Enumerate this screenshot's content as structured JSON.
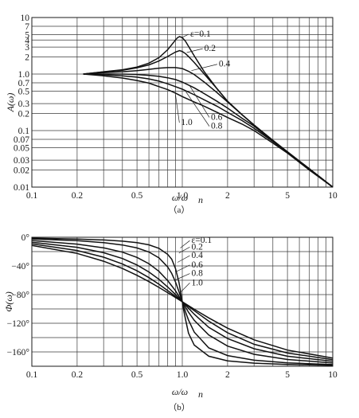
{
  "chart_data": [
    {
      "type": "line",
      "caption": "（a）",
      "xlabel": "ω/ω",
      "xlabel_sub": "n",
      "ylabel": "A(ω)",
      "xscale": "log",
      "yscale": "log",
      "xlim": [
        0.1,
        10
      ],
      "ylim": [
        0.01,
        10
      ],
      "grid": true,
      "x_ticks": [
        {
          "v": 0.1,
          "label": "0.1"
        },
        {
          "v": 0.2,
          "label": "0.2"
        },
        {
          "v": 0.5,
          "label": "0.5"
        },
        {
          "v": 1,
          "label": "1.0"
        },
        {
          "v": 2,
          "label": "2"
        },
        {
          "v": 5,
          "label": "5"
        },
        {
          "v": 10,
          "label": "10"
        }
      ],
      "x_grid": [
        0.1,
        0.2,
        0.3,
        0.4,
        0.5,
        0.6,
        0.7,
        0.8,
        0.9,
        1,
        2,
        3,
        4,
        5,
        6,
        7,
        8,
        9,
        10
      ],
      "y_ticks": [
        {
          "v": 0.01,
          "label": "0.01"
        },
        {
          "v": 0.02,
          "label": "0.02"
        },
        {
          "v": 0.03,
          "label": "0.03"
        },
        {
          "v": 0.05,
          "label": "0.05"
        },
        {
          "v": 0.07,
          "label": "0.07"
        },
        {
          "v": 0.1,
          "label": "0.1"
        },
        {
          "v": 0.2,
          "label": "0.2"
        },
        {
          "v": 0.3,
          "label": "0.3"
        },
        {
          "v": 0.5,
          "label": "0.5"
        },
        {
          "v": 0.7,
          "label": "0.7"
        },
        {
          "v": 1,
          "label": "1.0"
        },
        {
          "v": 2,
          "label": "2"
        },
        {
          "v": 3,
          "label": "3"
        },
        {
          "v": 4,
          "label": "4"
        },
        {
          "v": 5,
          "label": "5"
        },
        {
          "v": 7,
          "label": "7"
        },
        {
          "v": 10,
          "label": "10"
        }
      ],
      "y_grid": [
        0.01,
        0.02,
        0.03,
        0.05,
        0.07,
        0.1,
        0.2,
        0.3,
        0.5,
        0.7,
        1,
        2,
        3,
        4,
        5,
        7,
        10
      ],
      "series": [
        {
          "name": "ε=0.1",
          "x": [
            0.22,
            0.3,
            0.4,
            0.5,
            0.6,
            0.7,
            0.8,
            0.85,
            0.9,
            0.93,
            0.96,
            1.0,
            1.05,
            1.1,
            1.2,
            1.4,
            1.7,
            2.0,
            2.5,
            3.0,
            4.0,
            5.0,
            7.0,
            10.0
          ],
          "y": [
            1.0,
            1.1,
            1.19,
            1.33,
            1.56,
            1.95,
            2.7,
            3.3,
            4.0,
            4.4,
            4.6,
            4.4,
            3.8,
            3.1,
            2.1,
            1.1,
            0.55,
            0.33,
            0.19,
            0.125,
            0.067,
            0.042,
            0.021,
            0.01
          ]
        },
        {
          "name": "0.2",
          "x": [
            0.22,
            0.3,
            0.4,
            0.5,
            0.6,
            0.7,
            0.8,
            0.9,
            0.96,
            1.0,
            1.05,
            1.1,
            1.2,
            1.4,
            1.7,
            2.0,
            2.5,
            3.0,
            4.0,
            5.0,
            7.0,
            10.0
          ],
          "y": [
            1.0,
            1.09,
            1.17,
            1.29,
            1.45,
            1.7,
            2.05,
            2.45,
            2.6,
            2.5,
            2.3,
            2.05,
            1.6,
            1.0,
            0.55,
            0.33,
            0.19,
            0.125,
            0.067,
            0.042,
            0.021,
            0.01
          ]
        },
        {
          "name": "0.4",
          "x": [
            0.22,
            0.3,
            0.4,
            0.5,
            0.6,
            0.7,
            0.8,
            0.9,
            1.0,
            1.1,
            1.2,
            1.4,
            1.7,
            2.0,
            2.5,
            3.0,
            4.0,
            5.0,
            7.0,
            10.0
          ],
          "y": [
            1.0,
            1.06,
            1.1,
            1.15,
            1.21,
            1.27,
            1.3,
            1.3,
            1.25,
            1.12,
            0.98,
            0.72,
            0.47,
            0.32,
            0.19,
            0.125,
            0.067,
            0.042,
            0.021,
            0.01
          ]
        },
        {
          "name": "0.6",
          "x": [
            0.22,
            0.3,
            0.4,
            0.5,
            0.6,
            0.7,
            0.8,
            0.9,
            1.0,
            1.1,
            1.2,
            1.4,
            1.7,
            2.0,
            2.5,
            3.0,
            4.0,
            5.0,
            7.0,
            10.0
          ],
          "y": [
            1.0,
            1.0,
            1.0,
            0.98,
            0.95,
            0.91,
            0.86,
            0.8,
            0.72,
            0.64,
            0.57,
            0.45,
            0.33,
            0.25,
            0.165,
            0.12,
            0.065,
            0.041,
            0.021,
            0.01
          ]
        },
        {
          "name": "0.8",
          "x": [
            0.22,
            0.3,
            0.4,
            0.5,
            0.6,
            0.7,
            0.8,
            0.9,
            1.0,
            1.2,
            1.4,
            1.7,
            2.0,
            2.5,
            3.0,
            4.0,
            5.0,
            7.0,
            10.0
          ],
          "y": [
            1.0,
            0.97,
            0.93,
            0.88,
            0.82,
            0.75,
            0.67,
            0.6,
            0.54,
            0.43,
            0.35,
            0.27,
            0.21,
            0.15,
            0.11,
            0.064,
            0.041,
            0.021,
            0.01
          ]
        },
        {
          "name": "1.0",
          "x": [
            0.22,
            0.3,
            0.4,
            0.5,
            0.6,
            0.7,
            0.8,
            0.9,
            1.0,
            1.2,
            1.4,
            1.7,
            2.0,
            2.5,
            3.0,
            4.0,
            5.0,
            7.0,
            10.0
          ],
          "y": [
            1.0,
            0.93,
            0.85,
            0.77,
            0.69,
            0.6,
            0.53,
            0.46,
            0.4,
            0.32,
            0.27,
            0.21,
            0.17,
            0.13,
            0.1,
            0.06,
            0.04,
            0.02,
            0.01
          ]
        }
      ],
      "labels": [
        {
          "text": "ε=0.1",
          "x": 1.13,
          "y": 4.6,
          "lx": 1.0,
          "ly": 4.45
        },
        {
          "text": "0.2",
          "x": 1.4,
          "y": 2.55,
          "lx": 1.07,
          "ly": 2.4
        },
        {
          "text": "0.4",
          "x": 1.75,
          "y": 1.35,
          "lx": 1.15,
          "ly": 1.15
        },
        {
          "text": "0.6",
          "x": 1.55,
          "y": 0.155,
          "lx": 1.12,
          "ly": 0.62
        },
        {
          "text": "0.8",
          "x": 1.55,
          "y": 0.108,
          "lx": 1.05,
          "ly": 0.5
        },
        {
          "text": "1.0",
          "x": 0.98,
          "y": 0.125,
          "lx": 0.9,
          "ly": 0.44
        }
      ]
    },
    {
      "type": "line",
      "caption": "（b）",
      "xlabel": "ω/ω",
      "xlabel_sub": "n",
      "ylabel": "Φ(ω)",
      "xscale": "log",
      "xlim": [
        0.1,
        10
      ],
      "ylim": [
        -180,
        0
      ],
      "grid": true,
      "x_ticks": [
        {
          "v": 0.1,
          "label": "0.1"
        },
        {
          "v": 0.2,
          "label": "0.2"
        },
        {
          "v": 0.5,
          "label": "0.5"
        },
        {
          "v": 1,
          "label": "1.0"
        },
        {
          "v": 2,
          "label": "2"
        },
        {
          "v": 5,
          "label": "5"
        },
        {
          "v": 10,
          "label": "10"
        }
      ],
      "x_grid": [
        0.1,
        0.2,
        0.3,
        0.4,
        0.5,
        0.6,
        0.7,
        0.8,
        0.9,
        1,
        2,
        3,
        4,
        5,
        6,
        7,
        8,
        9,
        10
      ],
      "y_ticks": [
        {
          "v": 0,
          "label": "0°"
        },
        {
          "v": -40,
          "label": "−40°"
        },
        {
          "v": -80,
          "label": "−80°"
        },
        {
          "v": -120,
          "label": "−120°"
        },
        {
          "v": -160,
          "label": "−160°"
        }
      ],
      "y_grid": [
        0,
        -20,
        -40,
        -60,
        -80,
        -100,
        -120,
        -140,
        -160,
        -180
      ],
      "series": [
        {
          "name": "ε=0.1",
          "x": [
            0.1,
            0.2,
            0.3,
            0.4,
            0.5,
            0.6,
            0.7,
            0.8,
            0.85,
            0.9,
            0.95,
            0.98,
            1.0,
            1.02,
            1.05,
            1.1,
            1.2,
            1.5,
            2.0,
            3.0,
            5.0,
            10.0
          ],
          "y": [
            -1.2,
            -2.4,
            -3.8,
            -5.4,
            -7.6,
            -10.6,
            -15.4,
            -23.9,
            -30.6,
            -43.4,
            -62.8,
            -79.0,
            -90,
            -101,
            -114.2,
            -133.8,
            -150.4,
            -166.0,
            -172.4,
            -175.7,
            -177.6,
            -178.8
          ]
        },
        {
          "name": "0.2",
          "x": [
            0.1,
            0.2,
            0.3,
            0.4,
            0.5,
            0.6,
            0.7,
            0.8,
            0.85,
            0.9,
            0.95,
            1.0,
            1.05,
            1.1,
            1.2,
            1.5,
            2.0,
            3.0,
            5.0,
            10.0
          ],
          "y": [
            -2.3,
            -4.8,
            -7.5,
            -10.8,
            -14.9,
            -20.6,
            -28.8,
            -41.6,
            -50.4,
            -62.2,
            -75.9,
            -90,
            -104.0,
            -115.4,
            -132.3,
            -154.4,
            -165.1,
            -171.5,
            -175.2,
            -177.7
          ]
        },
        {
          "name": "0.4",
          "x": [
            0.1,
            0.2,
            0.3,
            0.4,
            0.5,
            0.6,
            0.7,
            0.8,
            0.9,
            1.0,
            1.1,
            1.2,
            1.5,
            2.0,
            3.0,
            5.0,
            10.0
          ],
          "y": [
            -4.6,
            -9.5,
            -14.8,
            -20.8,
            -28.1,
            -36.9,
            -47.6,
            -60.6,
            -74.6,
            -90,
            -104.6,
            -115.9,
            -136.4,
            -151.9,
            -163.3,
            -170.6,
            -175.4
          ]
        },
        {
          "name": "0.6",
          "x": [
            0.1,
            0.2,
            0.3,
            0.4,
            0.5,
            0.6,
            0.7,
            0.8,
            0.9,
            1.0,
            1.1,
            1.2,
            1.5,
            2.0,
            3.0,
            5.0,
            10.0
          ],
          "y": [
            -6.9,
            -14.0,
            -21.6,
            -29.7,
            -38.7,
            -48.4,
            -58.7,
            -69.4,
            -79.8,
            -90,
            -99.0,
            -107.3,
            -125.8,
            -141.3,
            -155.6,
            -166.0,
            -173.1
          ]
        },
        {
          "name": "0.8",
          "x": [
            0.1,
            0.2,
            0.3,
            0.4,
            0.5,
            0.6,
            0.7,
            0.8,
            0.9,
            1.0,
            1.2,
            1.5,
            2.0,
            3.0,
            5.0,
            10.0
          ],
          "y": [
            -9.2,
            -18.4,
            -27.8,
            -37.3,
            -46.8,
            -56.3,
            -65.6,
            -74.4,
            -82.5,
            -90,
            -102.4,
            -117.1,
            -133.2,
            -149.3,
            -161.6,
            -170.8
          ]
        },
        {
          "name": "1.0",
          "x": [
            0.1,
            0.2,
            0.3,
            0.4,
            0.5,
            0.6,
            0.7,
            0.8,
            0.9,
            1.0,
            1.2,
            1.5,
            2.0,
            3.0,
            5.0,
            10.0
          ],
          "y": [
            -11.4,
            -22.6,
            -33.4,
            -43.6,
            -53.1,
            -61.9,
            -70.0,
            -77.3,
            -84.0,
            -90,
            -100.4,
            -112.6,
            -126.9,
            -143.1,
            -157.4,
            -168.6
          ]
        }
      ],
      "labels": [
        {
          "text": "ε=0.1",
          "x": 1.15,
          "y": -8,
          "lx": 0.97,
          "ly": -15
        },
        {
          "text": "0.2",
          "x": 1.15,
          "y": -17,
          "lx": 0.95,
          "ly": -22
        },
        {
          "text": "0.4",
          "x": 1.15,
          "y": -29,
          "lx": 0.93,
          "ly": -35
        },
        {
          "text": "0.6",
          "x": 1.15,
          "y": -42,
          "lx": 0.91,
          "ly": -48
        },
        {
          "text": "0.8",
          "x": 1.15,
          "y": -54,
          "lx": 0.89,
          "ly": -60
        },
        {
          "text": "1.0",
          "x": 1.15,
          "y": -67,
          "lx": 0.96,
          "ly": -78
        }
      ]
    }
  ]
}
